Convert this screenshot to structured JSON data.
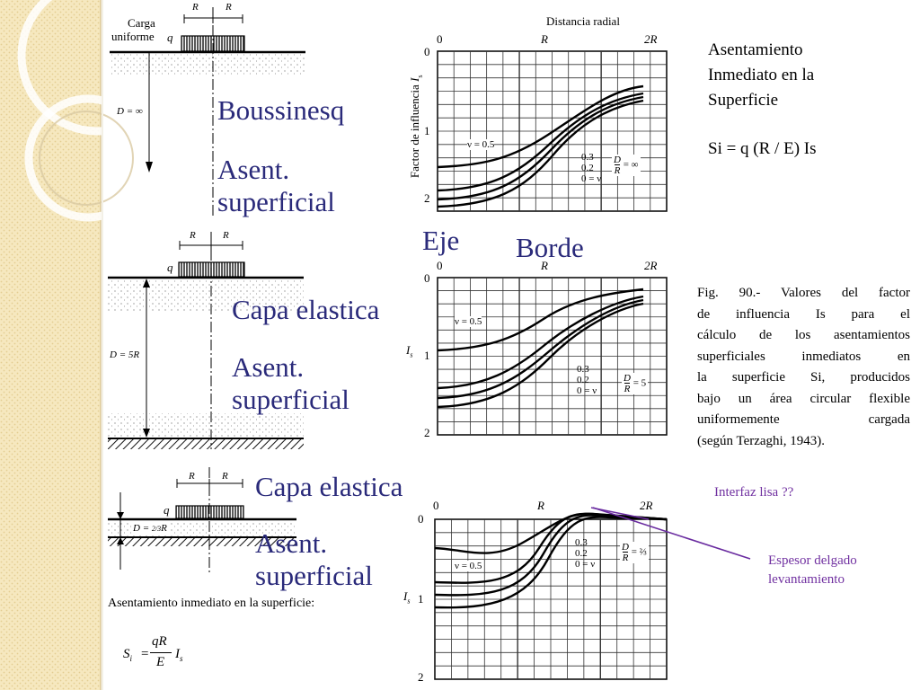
{
  "colors": {
    "paper_left": "#f6e8bf",
    "paper_dots": "#e4cd92",
    "label_blue": "#2a2a7a",
    "annotation_purple": "#7030a0",
    "annotation_line": "#6a2ca0"
  },
  "figure_text": {
    "r_label": "R",
    "load_label_line1": "Carga",
    "load_label_line2": "uniforme",
    "q": "q",
    "depth_top": "D = ∞",
    "depth_middle": "D = 5R",
    "depth_bottom": "D = ",
    "depth_bottom_fraction": "2/3",
    "depth_bottom_suffix": "R",
    "bottom_caption": "Asentamiento inmediato en la superficie:",
    "formula_lhs": "S",
    "formula_lhs_sub": "i",
    "formula_eq": "=",
    "formula_num": "qR",
    "formula_den": "E",
    "formula_is": "I",
    "formula_is_sub": "s",
    "graph_top_title": "Distancia radial",
    "y_axis_label": "Factor de influencia",
    "y_axis_symbol": "I",
    "y_axis_symbol_sub": "s",
    "x_tick_0": "0",
    "x_tick_R": "R",
    "x_tick_2R": "2R",
    "y_tick_0": "0",
    "y_tick_1": "1",
    "y_tick_2": "2",
    "nu_05": "ν = 0.5",
    "nu_03": "0.3",
    "nu_02": "0.2",
    "nu_0": "0 = ν",
    "d_over_r_num": "D",
    "d_over_r_den": "R",
    "d_over_r_inf": "= ∞",
    "d_over_r_5": "= 5",
    "d_over_r_23": "= ⅔"
  },
  "labels": {
    "boussinesq": "Boussinesq",
    "asent_sup_1": "Asent.",
    "asent_sup_1b": "superficial",
    "eje": "Eje",
    "borde": "Borde",
    "capa_elastica_1": "Capa elastica",
    "asent_sup_2": "Asent.",
    "asent_sup_2b": "superficial",
    "capa_elastica_2": "Capa elastica",
    "asent_sup_3": "Asent.",
    "asent_sup_3b": "superficial"
  },
  "right_notes": {
    "title_line1": "Asentamiento",
    "title_line2": "Inmediato en la",
    "title_line3": "Superficie",
    "formula": "Si = q (R / E) Is",
    "caption_lines": [
      "Fig. 90.- Valores del factor",
      "de influencia Is para el",
      "cálculo de los asentamientos",
      "superficiales inmediatos en",
      "la superficie Si, producidos",
      "bajo un área circular flexible",
      "uniformemente cargada",
      "(según Terzaghi, 1943)."
    ],
    "interfaz": "Interfaz lisa ??",
    "espesor_line1": "Espesor delgado",
    "espesor_line2": "levantamiento"
  }
}
